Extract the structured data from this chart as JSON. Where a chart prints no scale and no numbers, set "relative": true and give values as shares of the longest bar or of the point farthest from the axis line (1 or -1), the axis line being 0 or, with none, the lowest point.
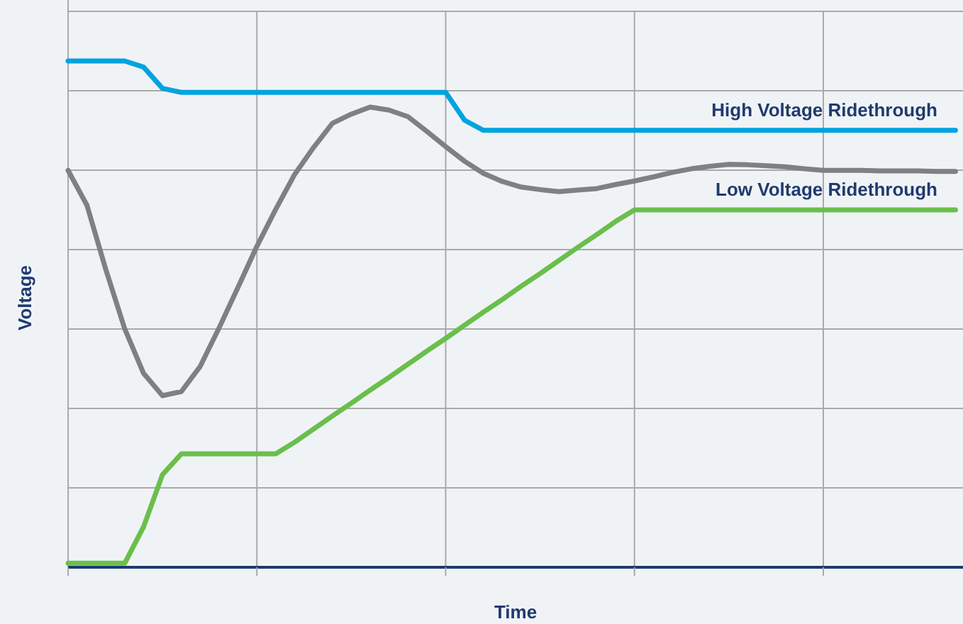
{
  "chart_data": {
    "type": "line",
    "relative": true,
    "xlabel": "Time",
    "ylabel": "Voltage",
    "grid": true,
    "categories": [
      null,
      null,
      null,
      null,
      null,
      null,
      null,
      null,
      null,
      null,
      null,
      null,
      null,
      null,
      null,
      null,
      null,
      null,
      null,
      null,
      null,
      null,
      null,
      null,
      null,
      null,
      null,
      null,
      null,
      null,
      null,
      null,
      null,
      null,
      null,
      null,
      null,
      null,
      null,
      null,
      null,
      null,
      null,
      null,
      null,
      null,
      null,
      null
    ],
    "series": [
      {
        "name": "High Voltage Ridethrough",
        "color": "#00a3e0",
        "values": [
          1,
          1,
          1,
          1,
          0.988,
          0.946,
          0.938,
          0.938,
          0.938,
          0.938,
          0.938,
          0.938,
          0.938,
          0.938,
          0.938,
          0.938,
          0.938,
          0.938,
          0.938,
          0.938,
          0.938,
          0.883,
          0.863,
          0.863,
          0.863,
          0.863,
          0.863,
          0.863,
          0.863,
          0.863,
          0.863,
          0.863,
          0.863,
          0.863,
          0.863,
          0.863,
          0.863,
          0.863,
          0.863,
          0.863,
          0.863,
          0.863,
          0.863,
          0.863,
          0.863,
          0.863,
          0.863,
          0.863
        ]
      },
      {
        "color": "#808080",
        "values": [
          0.784,
          0.715,
          0.588,
          0.471,
          0.383,
          0.339,
          0.347,
          0.397,
          0.473,
          0.553,
          0.634,
          0.707,
          0.776,
          0.829,
          0.877,
          0.895,
          0.909,
          0.903,
          0.89,
          0.861,
          0.831,
          0.802,
          0.778,
          0.762,
          0.751,
          0.746,
          0.742,
          0.745,
          0.748,
          0.756,
          0.763,
          0.771,
          0.78,
          0.787,
          0.792,
          0.796,
          0.795,
          0.793,
          0.791,
          0.787,
          0.784,
          0.784,
          0.784,
          0.783,
          0.783,
          0.783,
          0.782,
          0.782
        ]
      },
      {
        "name": "Low Voltage Ridethrough",
        "color": "#6abf4b",
        "values": [
          0.008,
          0.008,
          0.008,
          0.008,
          0.08,
          0.183,
          0.224,
          0.224,
          0.224,
          0.224,
          0.224,
          0.224,
          0.247,
          0.273,
          0.299,
          0.324,
          0.35,
          0.375,
          0.401,
          0.427,
          0.452,
          0.478,
          0.504,
          0.529,
          0.555,
          0.58,
          0.606,
          0.632,
          0.657,
          0.683,
          0.706,
          0.706,
          0.706,
          0.706,
          0.706,
          0.706,
          0.706,
          0.706,
          0.706,
          0.706,
          0.706,
          0.706,
          0.706,
          0.706,
          0.706,
          0.706,
          0.706,
          0.706
        ]
      }
    ]
  }
}
